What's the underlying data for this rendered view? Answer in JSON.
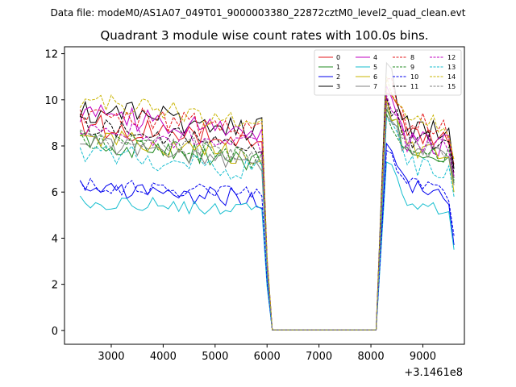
{
  "figure": {
    "suptitle": "Data file: modeM0/AS1A07_049T01_9000003380_22872cztM0_level2_quad_clean.evt"
  },
  "chart_data": {
    "type": "line",
    "title": "Quadrant 3 module wise count rates with 100.0s bins.",
    "xlabel": "",
    "ylabel": "",
    "x_offset_label": "+3.1461e8",
    "xlim": [
      2100,
      9800
    ],
    "ylim": [
      -0.6,
      12.3
    ],
    "xticks": [
      3000,
      4000,
      5000,
      6000,
      7000,
      8000,
      9000
    ],
    "yticks": [
      0,
      2,
      4,
      6,
      8,
      10,
      12
    ],
    "legend_location": "top-right",
    "gap": {
      "start": 6100,
      "end": 8100,
      "value": 0.02
    },
    "segment1": {
      "start": 2400,
      "end": 5900
    },
    "segment2": {
      "start": 8300,
      "end": 9500
    },
    "series": [
      {
        "name": "0",
        "color": "#e41a1c",
        "dash": "solid",
        "level1": 8.4,
        "jitter": 0.55,
        "spike": 10.3,
        "level2": 8.8,
        "end": 7.2,
        "seed": 11
      },
      {
        "name": "1",
        "color": "#228b22",
        "dash": "solid",
        "level1": 7.6,
        "jitter": 0.45,
        "spike": 9.6,
        "level2": 8.0,
        "end": 6.4,
        "seed": 23
      },
      {
        "name": "2",
        "color": "#0000ee",
        "dash": "solid",
        "level1": 6.0,
        "jitter": 0.45,
        "spike": 8.1,
        "level2": 6.3,
        "end": 3.7,
        "seed": 37
      },
      {
        "name": "3",
        "color": "#000000",
        "dash": "solid",
        "level1": 9.0,
        "jitter": 0.55,
        "spike": 11.6,
        "level2": 8.9,
        "end": 7.0,
        "seed": 41
      },
      {
        "name": "4",
        "color": "#c000c0",
        "dash": "solid",
        "level1": 8.8,
        "jitter": 0.5,
        "spike": 10.6,
        "level2": 8.4,
        "end": 6.6,
        "seed": 53
      },
      {
        "name": "5",
        "color": "#17becf",
        "dash": "solid",
        "level1": 5.5,
        "jitter": 0.35,
        "spike": 7.3,
        "level2": 5.6,
        "end": 3.5,
        "seed": 61
      },
      {
        "name": "6",
        "color": "#c8b400",
        "dash": "solid",
        "level1": 7.8,
        "jitter": 0.45,
        "spike": 10.0,
        "level2": 8.1,
        "end": 6.0,
        "seed": 71
      },
      {
        "name": "7",
        "color": "#808080",
        "dash": "solid",
        "level1": 7.5,
        "jitter": 0.4,
        "spike": 9.3,
        "level2": 7.9,
        "end": 6.3,
        "seed": 83
      },
      {
        "name": "8",
        "color": "#e41a1c",
        "dash": "dashed",
        "level1": 8.9,
        "jitter": 0.55,
        "spike": 10.9,
        "level2": 9.1,
        "end": 7.4,
        "seed": 97
      },
      {
        "name": "9",
        "color": "#228b22",
        "dash": "dashed",
        "level1": 7.7,
        "jitter": 0.45,
        "spike": 9.4,
        "level2": 8.1,
        "end": 6.5,
        "seed": 101
      },
      {
        "name": "10",
        "color": "#0000ee",
        "dash": "dashed",
        "level1": 6.1,
        "jitter": 0.4,
        "spike": 7.8,
        "level2": 6.4,
        "end": 4.1,
        "seed": 113
      },
      {
        "name": "11",
        "color": "#000000",
        "dash": "dashed",
        "level1": 8.3,
        "jitter": 0.45,
        "spike": 10.1,
        "level2": 8.5,
        "end": 6.8,
        "seed": 127
      },
      {
        "name": "12",
        "color": "#c000c0",
        "dash": "dashed",
        "level1": 8.2,
        "jitter": 0.45,
        "spike": 10.2,
        "level2": 8.3,
        "end": 6.7,
        "seed": 131
      },
      {
        "name": "13",
        "color": "#17becf",
        "dash": "dashed",
        "level1": 7.2,
        "jitter": 0.5,
        "spike": 9.2,
        "level2": 7.4,
        "end": 5.8,
        "seed": 149
      },
      {
        "name": "14",
        "color": "#c8b400",
        "dash": "dashed",
        "level1": 9.3,
        "jitter": 0.5,
        "spike": 11.0,
        "level2": 9.2,
        "end": 7.4,
        "seed": 157
      },
      {
        "name": "15",
        "color": "#808080",
        "dash": "dashed",
        "level1": 7.9,
        "jitter": 0.45,
        "spike": 9.8,
        "level2": 8.2,
        "end": 6.6,
        "seed": 163
      }
    ]
  }
}
